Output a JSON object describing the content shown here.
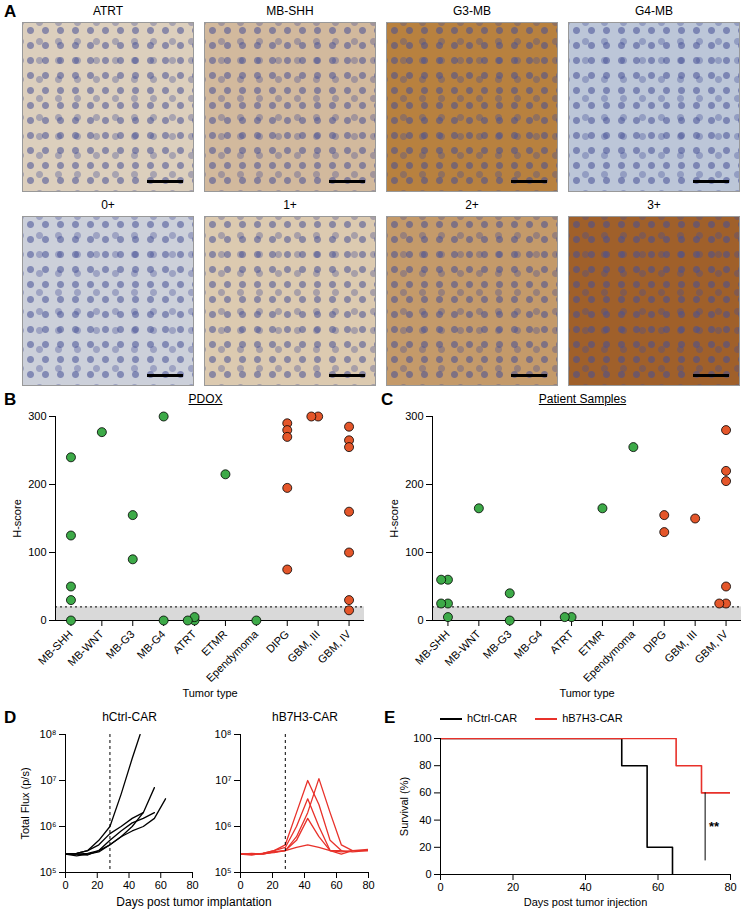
{
  "image_panel": {
    "panel_label": "A",
    "rows": [
      [
        "ATRT",
        "MB-SHH",
        "G3-MB",
        "G4-MB"
      ],
      [
        "0+",
        "1+",
        "2+",
        "3+"
      ]
    ]
  },
  "chart_data": [
    {
      "panel_label": "B",
      "type": "scatter",
      "title": "PDOX",
      "xlabel": "Tumor type",
      "ylabel": "H-score",
      "categories": [
        "MB-SHH",
        "MB-WNT",
        "MB-G3",
        "MB-G4",
        "ATRT",
        "ETMR",
        "Ependymoma",
        "DIPG",
        "GBM, III",
        "GBM, IV"
      ],
      "values": [
        [
          240,
          125,
          50,
          30,
          0
        ],
        [
          277
        ],
        [
          155,
          90
        ],
        [
          300,
          0
        ],
        [
          0,
          5,
          0
        ],
        [
          215
        ],
        [
          0
        ],
        [
          290,
          280,
          270,
          195,
          75
        ],
        [
          300,
          300
        ],
        [
          285,
          265,
          255,
          160,
          100,
          30,
          15
        ]
      ],
      "colors": [
        "#3daa48",
        "#3daa48",
        "#3daa48",
        "#3daa48",
        "#3daa48",
        "#3daa48",
        "#3daa48",
        "#e4562a",
        "#e4562a",
        "#e4562a"
      ],
      "threshold": 20,
      "ylim": [
        0,
        300
      ],
      "yticks": [
        0,
        100,
        200,
        300
      ]
    },
    {
      "panel_label": "C",
      "type": "scatter",
      "title": "Patient Samples",
      "xlabel": "Tumor type",
      "ylabel": "H-score",
      "categories": [
        "MB-SHH",
        "MB-WNT",
        "MB-G3",
        "MB-G4",
        "ATRT",
        "ETMR",
        "Ependymoma",
        "DIPG",
        "GBM, III",
        "GBM, IV"
      ],
      "values": [
        [
          60,
          60,
          25,
          25,
          5
        ],
        [
          165
        ],
        [
          40,
          0
        ],
        [],
        [
          5,
          5
        ],
        [
          165
        ],
        [
          255
        ],
        [
          155,
          130
        ],
        [
          150
        ],
        [
          280,
          220,
          205,
          50,
          25,
          25
        ]
      ],
      "colors": [
        "#3daa48",
        "#3daa48",
        "#3daa48",
        "#3daa48",
        "#3daa48",
        "#3daa48",
        "#3daa48",
        "#e4562a",
        "#e4562a",
        "#e4562a"
      ],
      "threshold": 20,
      "ylim": [
        0,
        300
      ],
      "yticks": [
        0,
        100,
        200,
        300
      ]
    },
    {
      "panel_label": "D",
      "type": "line",
      "title": "hCtrl-CAR",
      "xlabel": "Days post tumor implantation",
      "ylabel": "Total Flux (p/s)",
      "log": "y",
      "color": "#000000",
      "vline": 28,
      "xlim": [
        0,
        80
      ],
      "xticks": [
        0,
        20,
        40,
        60,
        80
      ],
      "ylim": [
        100000,
        100000000
      ],
      "yticks": [
        {
          "value": 100000,
          "label": "10⁵"
        },
        {
          "value": 1000000,
          "label": "10⁶"
        },
        {
          "value": 10000000,
          "label": "10⁷"
        },
        {
          "value": 100000000,
          "label": "10⁸"
        }
      ],
      "series": [
        {
          "x": [
            0,
            7,
            14,
            21,
            28,
            35,
            42,
            47
          ],
          "values": [
            250000,
            260000,
            300000,
            500000,
            1000000,
            5000000,
            30000000,
            100000000
          ]
        },
        {
          "x": [
            0,
            7,
            14,
            21,
            28,
            35,
            42,
            49,
            56
          ],
          "values": [
            250000,
            250000,
            260000,
            300000,
            400000,
            600000,
            1000000,
            2000000,
            7000000
          ]
        },
        {
          "x": [
            0,
            7,
            14,
            21,
            28,
            35,
            42,
            49,
            56,
            63
          ],
          "values": [
            250000,
            230000,
            250000,
            280000,
            400000,
            600000,
            800000,
            1000000,
            1500000,
            4000000
          ]
        },
        {
          "x": [
            0,
            7,
            14,
            21,
            28,
            35,
            42,
            49,
            56
          ],
          "values": [
            250000,
            250000,
            240000,
            300000,
            500000,
            800000,
            1200000,
            1500000,
            2000000
          ]
        },
        {
          "x": [
            0,
            7,
            14,
            21,
            28,
            35,
            42,
            49
          ],
          "values": [
            250000,
            260000,
            300000,
            400000,
            700000,
            1000000,
            1500000,
            2000000
          ]
        }
      ]
    },
    {
      "type": "line",
      "title": "hB7H3-CAR",
      "log": "y",
      "color": "#e8312a",
      "vline": 28,
      "xlim": [
        0,
        80
      ],
      "xticks": [
        0,
        20,
        40,
        60,
        80
      ],
      "ylim": [
        100000,
        100000000
      ],
      "yticks": [
        {
          "value": 100000,
          "label": "10⁵"
        },
        {
          "value": 1000000,
          "label": "10⁶"
        },
        {
          "value": 10000000,
          "label": "10⁷"
        },
        {
          "value": 100000000,
          "label": "10⁸"
        }
      ],
      "series": [
        {
          "x": [
            0,
            7,
            14,
            21,
            28,
            35,
            42,
            49,
            56,
            63
          ],
          "values": [
            250000,
            250000,
            260000,
            300000,
            400000,
            2000000,
            10000000,
            3000000,
            500000,
            300000
          ]
        },
        {
          "x": [
            0,
            7,
            14,
            21,
            28,
            35,
            42,
            49,
            56,
            63,
            70
          ],
          "values": [
            250000,
            250000,
            250000,
            280000,
            300000,
            600000,
            2000000,
            11000000,
            2000000,
            400000,
            300000
          ]
        },
        {
          "x": [
            0,
            7,
            14,
            21,
            28,
            35,
            42,
            49,
            56,
            63,
            70,
            80
          ],
          "values": [
            250000,
            240000,
            260000,
            300000,
            350000,
            1000000,
            4000000,
            1000000,
            300000,
            250000,
            300000,
            300000
          ]
        },
        {
          "x": [
            0,
            7,
            14,
            21,
            28,
            35,
            42,
            49,
            56,
            63,
            70,
            80
          ],
          "values": [
            250000,
            260000,
            250000,
            280000,
            300000,
            500000,
            1500000,
            600000,
            300000,
            280000,
            300000,
            320000
          ]
        },
        {
          "x": [
            0,
            7,
            14,
            21,
            28,
            35,
            42,
            49,
            56,
            63,
            70,
            80
          ],
          "values": [
            250000,
            250000,
            260000,
            270000,
            300000,
            350000,
            400000,
            350000,
            300000,
            300000,
            280000,
            300000
          ]
        }
      ]
    },
    {
      "panel_label": "E",
      "type": "line",
      "line_style": "step",
      "xlabel": "Days post tumor injection",
      "ylabel": "Survival (%)",
      "legend": "top",
      "xlim": [
        0,
        80
      ],
      "xticks": [
        0,
        20,
        40,
        60,
        80
      ],
      "ylim": [
        0,
        100
      ],
      "yticks": [
        0,
        20,
        40,
        60,
        80,
        100
      ],
      "series": [
        {
          "name": "hCtrl-CAR",
          "color": "#000000",
          "x": [
            0,
            50,
            57,
            64
          ],
          "values": [
            100,
            80,
            20,
            0
          ]
        },
        {
          "name": "hB7H3-CAR",
          "color": "#e8312a",
          "x": [
            0,
            65,
            72,
            80
          ],
          "values": [
            100,
            80,
            60,
            60
          ]
        }
      ],
      "annotation": {
        "text": "**",
        "x": 73,
        "y1": 10,
        "y2": 60
      }
    }
  ]
}
